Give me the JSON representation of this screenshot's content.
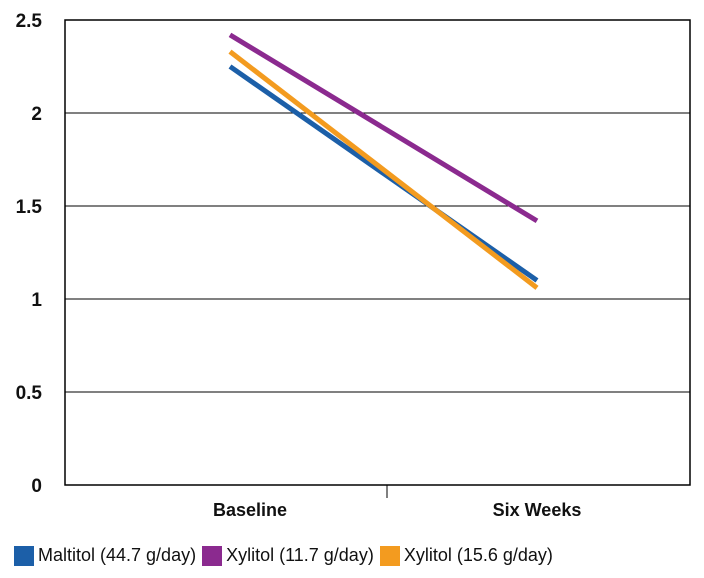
{
  "chart_data": {
    "type": "line",
    "categories": [
      "Baseline",
      "Six Weeks"
    ],
    "series": [
      {
        "name": "Maltitol (44.7 g/day)",
        "values": [
          2.25,
          1.1
        ],
        "color": "#1c5fa8"
      },
      {
        "name": "Xylitol (11.7 g/day)",
        "values": [
          2.42,
          1.42
        ],
        "color": "#8b2a8f"
      },
      {
        "name": "Xylitol (15.6 g/day)",
        "values": [
          2.33,
          1.06
        ],
        "color": "#f39b1f"
      }
    ],
    "y_ticks": [
      "0",
      "0.5",
      "1",
      "1.5",
      "2",
      "2.5"
    ],
    "ylim": [
      0,
      2.5
    ],
    "grid": true,
    "legend_position": "bottom-left"
  }
}
